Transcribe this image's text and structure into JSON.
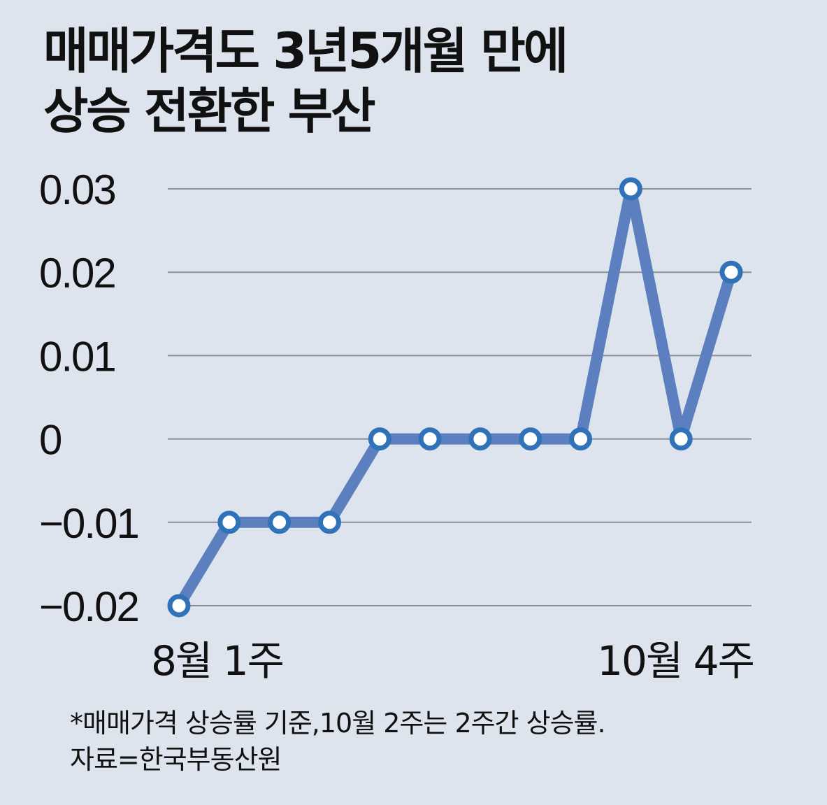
{
  "title_lines": [
    "매매가격도 3년5개월 만에",
    "상승 전환한 부산"
  ],
  "footnote_lines": [
    "*매매가격 상승률 기준,10월 2주는 2주간 상승률.",
    "자료=한국부동산원"
  ],
  "colors": {
    "background": "#dde4ee",
    "line": "#5b7fbf",
    "marker_stroke": "#2f72b8",
    "marker_fill": "#ffffff",
    "grid": "#8a8f96",
    "text": "#111111"
  },
  "chart_data": {
    "type": "line",
    "title": "매매가격도 3년5개월 만에 상승 전환한 부산",
    "x_tick_labels": [
      {
        "index": 0,
        "label": "8월 1주"
      },
      {
        "index": 11,
        "label": "10월 4주"
      }
    ],
    "y_ticks": [
      0.03,
      0.02,
      0.01,
      0,
      -0.01,
      -0.02
    ],
    "y_tick_labels": [
      "0.03",
      "0.02",
      "0.01",
      "0",
      "−0.01",
      "−0.02"
    ],
    "ylim": [
      -0.02,
      0.03
    ],
    "grid": true,
    "series": [
      {
        "values": [
          -0.02,
          -0.01,
          -0.01,
          -0.01,
          0,
          0,
          0,
          0,
          0,
          0.03,
          0,
          0.02
        ]
      }
    ]
  }
}
